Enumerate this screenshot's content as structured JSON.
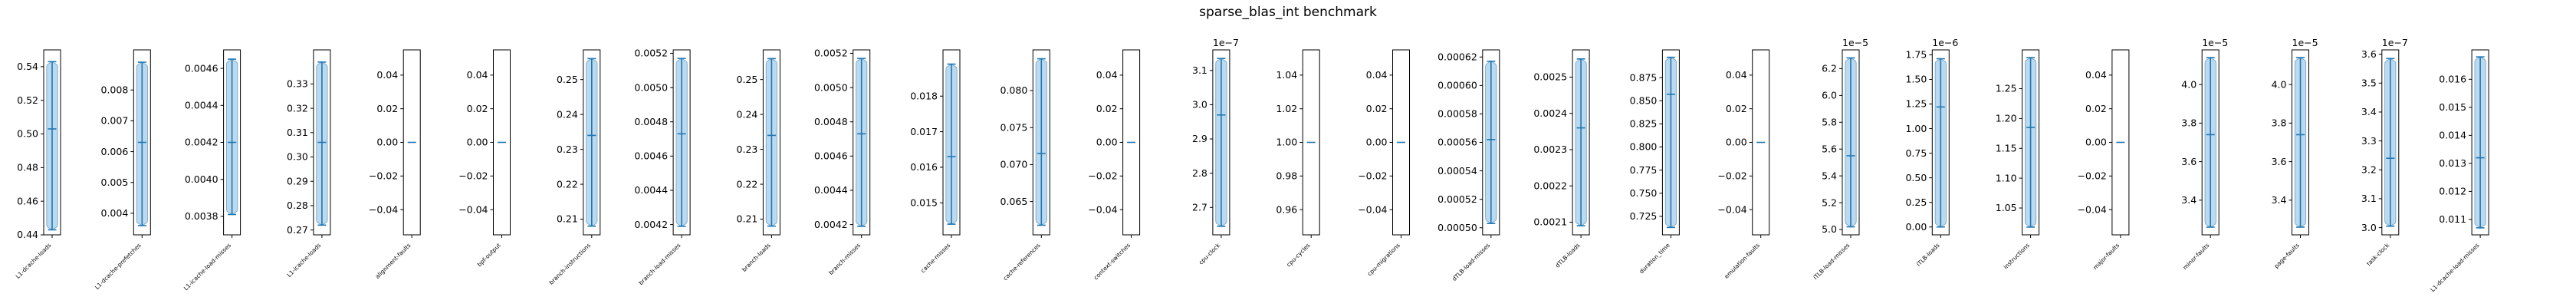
{
  "chart_data": {
    "type": "violin",
    "title": "sparse_blas_int benchmark",
    "colors": {
      "fill": "#a6cce8",
      "line": "#1f77b4",
      "frame": "#000000"
    },
    "panels": [
      {
        "label": "L1-dcache-loads",
        "ylim": [
          0.44,
          0.55
        ],
        "yticks": [
          "0.44",
          "0.46",
          "0.48",
          "0.50",
          "0.52",
          "0.54"
        ],
        "offset": "",
        "min": 0.443,
        "max": 0.543,
        "median": 0.503,
        "violin": true
      },
      {
        "label": "L1-dcache-prefetches",
        "ylim": [
          0.0033,
          0.0093
        ],
        "yticks": [
          "0.004",
          "0.005",
          "0.006",
          "0.007",
          "0.008"
        ],
        "offset": "",
        "min": 0.0036,
        "max": 0.0089,
        "median": 0.0063,
        "violin": true
      },
      {
        "label": "L1-icache-load-misses",
        "ylim": [
          0.0037,
          0.0047
        ],
        "yticks": [
          "0.0038",
          "0.0040",
          "0.0042",
          "0.0044",
          "0.0046"
        ],
        "offset": "",
        "min": 0.00381,
        "max": 0.00465,
        "median": 0.0042,
        "violin": true
      },
      {
        "label": "L1-icache-loads",
        "ylim": [
          0.268,
          0.344
        ],
        "yticks": [
          "0.27",
          "0.28",
          "0.29",
          "0.30",
          "0.31",
          "0.32",
          "0.33"
        ],
        "offset": "",
        "min": 0.272,
        "max": 0.339,
        "median": 0.306,
        "violin": true
      },
      {
        "label": "alignment-faults",
        "ylim": [
          -0.055,
          0.055
        ],
        "yticks": [
          "−0.04",
          "−0.02",
          "0.00",
          "0.02",
          "0.04"
        ],
        "offset": "",
        "min": 0,
        "max": 0,
        "median": 0,
        "violin": false
      },
      {
        "label": "bpf-output",
        "ylim": [
          -0.055,
          0.055
        ],
        "yticks": [
          "−0.04",
          "−0.02",
          "0.00",
          "0.02",
          "0.04"
        ],
        "offset": "",
        "min": 0,
        "max": 0,
        "median": 0,
        "violin": false
      },
      {
        "label": "branch-instructions",
        "ylim": [
          0.2055,
          0.2585
        ],
        "yticks": [
          "0.21",
          "0.22",
          "0.23",
          "0.24",
          "0.25"
        ],
        "offset": "",
        "min": 0.208,
        "max": 0.256,
        "median": 0.234,
        "violin": true
      },
      {
        "label": "branch-load-misses",
        "ylim": [
          0.00414,
          0.00522
        ],
        "yticks": [
          "0.0042",
          "0.0044",
          "0.0046",
          "0.0048",
          "0.0050",
          "0.0052"
        ],
        "offset": "",
        "min": 0.00419,
        "max": 0.00517,
        "median": 0.00473,
        "violin": true
      },
      {
        "label": "branch-loads",
        "ylim": [
          0.2055,
          0.2585
        ],
        "yticks": [
          "0.21",
          "0.22",
          "0.23",
          "0.24",
          "0.25"
        ],
        "offset": "",
        "min": 0.208,
        "max": 0.256,
        "median": 0.234,
        "violin": true
      },
      {
        "label": "branch-misses",
        "ylim": [
          0.00414,
          0.00522
        ],
        "yticks": [
          "0.0042",
          "0.0044",
          "0.0046",
          "0.0048",
          "0.0050",
          "0.0052"
        ],
        "offset": "",
        "min": 0.00419,
        "max": 0.00517,
        "median": 0.00473,
        "violin": true
      },
      {
        "label": "cache-misses",
        "ylim": [
          0.0141,
          0.0193
        ],
        "yticks": [
          "0.015",
          "0.016",
          "0.017",
          "0.018"
        ],
        "offset": "",
        "min": 0.0144,
        "max": 0.0189,
        "median": 0.0163,
        "violin": true
      },
      {
        "label": "cache-references",
        "ylim": [
          0.0605,
          0.0855
        ],
        "yticks": [
          "0.065",
          "0.070",
          "0.075",
          "0.080"
        ],
        "offset": "",
        "min": 0.0618,
        "max": 0.0843,
        "median": 0.0715,
        "violin": true
      },
      {
        "label": "context-switches",
        "ylim": [
          -0.055,
          0.055
        ],
        "yticks": [
          "−0.04",
          "−0.02",
          "0.00",
          "0.02",
          "0.04"
        ],
        "offset": "",
        "min": 0,
        "max": 0,
        "median": 0,
        "violin": false
      },
      {
        "label": "cpu-clock",
        "ylim": [
          2.62e-07,
          3.16e-07
        ],
        "yticks": [
          "2.7",
          "2.8",
          "2.9",
          "3.0",
          "3.1"
        ],
        "offset": "1e−7",
        "min": 2.645e-07,
        "max": 3.135e-07,
        "median": 2.97e-07,
        "violin": true
      },
      {
        "label": "cpu-cycles",
        "ylim": [
          0.945,
          1.055
        ],
        "yticks": [
          "0.96",
          "0.98",
          "1.00",
          "1.02",
          "1.04"
        ],
        "offset": "",
        "min": 1.0,
        "max": 1.0,
        "median": 1.0,
        "violin": false
      },
      {
        "label": "cpu-migrations",
        "ylim": [
          -0.055,
          0.055
        ],
        "yticks": [
          "−0.04",
          "−0.02",
          "0.00",
          "0.02",
          "0.04"
        ],
        "offset": "",
        "min": 0,
        "max": 0,
        "median": 0,
        "violin": false
      },
      {
        "label": "dTLB-load-misses",
        "ylim": [
          0.000495,
          0.000625
        ],
        "yticks": [
          "0.00050",
          "0.00052",
          "0.00054",
          "0.00056",
          "0.00058",
          "0.00060",
          "0.00062"
        ],
        "offset": "",
        "min": 0.000503,
        "max": 0.000617,
        "median": 0.000562,
        "violin": true
      },
      {
        "label": "dTLB-loads",
        "ylim": [
          0.002065,
          0.002575
        ],
        "yticks": [
          "0.0021",
          "0.0022",
          "0.0023",
          "0.0024",
          "0.0025"
        ],
        "offset": "",
        "min": 0.00209,
        "max": 0.00255,
        "median": 0.00236,
        "violin": true
      },
      {
        "label": "duration_time",
        "ylim": [
          0.705,
          0.905
        ],
        "yticks": [
          "0.725",
          "0.750",
          "0.775",
          "0.800",
          "0.825",
          "0.850",
          "0.875"
        ],
        "offset": "",
        "min": 0.713,
        "max": 0.897,
        "median": 0.857,
        "violin": true
      },
      {
        "label": "emulation-faults",
        "ylim": [
          -0.055,
          0.055
        ],
        "yticks": [
          "−0.04",
          "−0.02",
          "0.00",
          "0.02",
          "0.04"
        ],
        "offset": "",
        "min": 0,
        "max": 0,
        "median": 0,
        "violin": false
      },
      {
        "label": "iTLB-load-misses",
        "ylim": [
          4.96e-05,
          6.34e-05
        ],
        "yticks": [
          "5.0",
          "5.2",
          "5.4",
          "5.6",
          "5.8",
          "6.0",
          "6.2"
        ],
        "offset": "1e−5",
        "min": 5.02e-05,
        "max": 6.28e-05,
        "median": 5.55e-05,
        "violin": true
      },
      {
        "label": "iTLB-loads",
        "ylim": [
          -8e-08,
          1.8e-06
        ],
        "yticks": [
          "0.00",
          "0.25",
          "0.50",
          "0.75",
          "1.00",
          "1.25",
          "1.50",
          "1.75"
        ],
        "offset": "1e−6",
        "min": 0,
        "max": 1.71e-06,
        "median": 1.22e-06,
        "violin": true
      },
      {
        "label": "instructions",
        "ylim": [
          1.005,
          1.315
        ],
        "yticks": [
          "1.05",
          "1.10",
          "1.15",
          "1.20",
          "1.25"
        ],
        "offset": "",
        "min": 1.018,
        "max": 1.302,
        "median": 1.185,
        "violin": true
      },
      {
        "label": "major-faults",
        "ylim": [
          -0.055,
          0.055
        ],
        "yticks": [
          "−0.04",
          "−0.02",
          "0.00",
          "0.02",
          "0.04"
        ],
        "offset": "",
        "min": 0,
        "max": 0,
        "median": 0,
        "violin": false
      },
      {
        "label": "minor-faults",
        "ylim": [
          3.22e-05,
          4.18e-05
        ],
        "yticks": [
          "3.4",
          "3.6",
          "3.8",
          "4.0"
        ],
        "offset": "1e−5",
        "min": 3.26e-05,
        "max": 4.14e-05,
        "median": 3.74e-05,
        "violin": true
      },
      {
        "label": "page-faults",
        "ylim": [
          3.22e-05,
          4.18e-05
        ],
        "yticks": [
          "3.4",
          "3.6",
          "3.8",
          "4.0"
        ],
        "offset": "1e−5",
        "min": 3.26e-05,
        "max": 4.14e-05,
        "median": 3.74e-05,
        "violin": true
      },
      {
        "label": "task-clock",
        "ylim": [
          2.975e-07,
          3.615e-07
        ],
        "yticks": [
          "3.0",
          "3.1",
          "3.2",
          "3.3",
          "3.4",
          "3.5",
          "3.6"
        ],
        "offset": "1e−7",
        "min": 3.005e-07,
        "max": 3.585e-07,
        "median": 3.24e-07,
        "violin": true
      },
      {
        "label": "L1-dcache-load-misses",
        "ylim": [
          0.01045,
          0.01705
        ],
        "yticks": [
          "0.011",
          "0.012",
          "0.013",
          "0.014",
          "0.015",
          "0.016"
        ],
        "offset": "",
        "min": 0.0107,
        "max": 0.0168,
        "median": 0.0132,
        "violin": true
      }
    ]
  }
}
